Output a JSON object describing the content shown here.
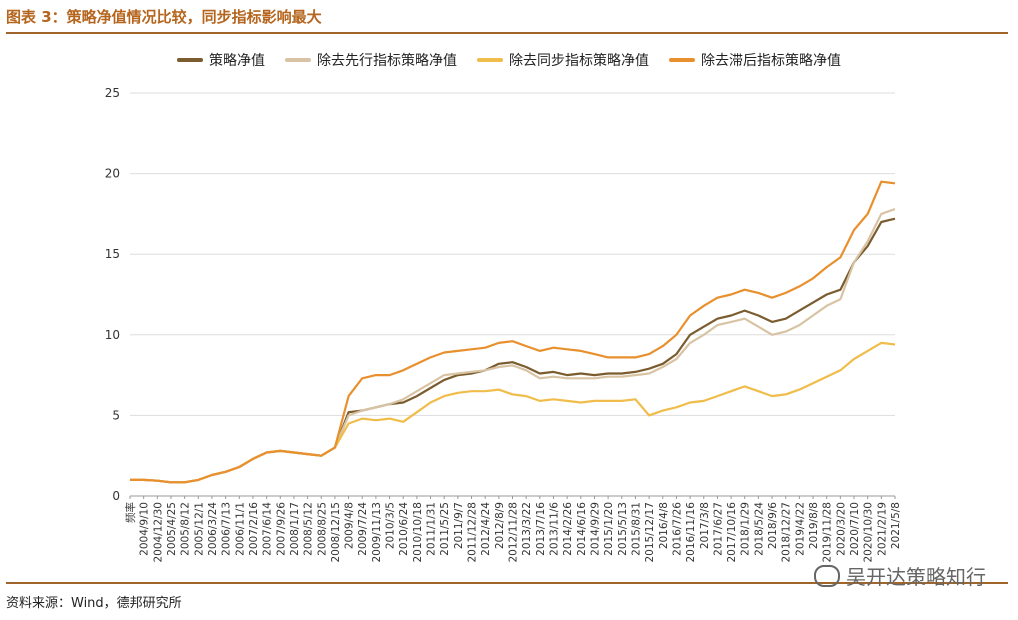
{
  "header": {
    "title": "图表 3：策略净值情况比较，同步指标影响最大"
  },
  "footer": {
    "source": "资料来源：Wind，德邦研究所",
    "watermark": "吴开达策略知行"
  },
  "chart_data": {
    "type": "line",
    "title": "",
    "xlabel": "",
    "ylabel": "",
    "ylim": [
      0,
      25
    ],
    "yticks": [
      0,
      5,
      10,
      15,
      20,
      25
    ],
    "grid": true,
    "legend_position": "top",
    "x_tick_labels": [
      "频率",
      "2004/9/10",
      "2004/12/30",
      "2005/4/25",
      "2005/8/12",
      "2005/12/1",
      "2006/3/24",
      "2006/7/13",
      "2006/11/1",
      "2007/2/16",
      "2007/6/14",
      "2007/9/26",
      "2008/1/17",
      "2008/5/12",
      "2008/8/25",
      "2008/12/15",
      "2009/4/8",
      "2009/7/24",
      "2009/11/13",
      "2010/3/5",
      "2010/6/24",
      "2010/10/18",
      "2011/1/31",
      "2011/5/25",
      "2011/9/7",
      "2011/12/28",
      "2012/4/24",
      "2012/8/9",
      "2012/11/28",
      "2013/3/22",
      "2013/7/16",
      "2013/11/6",
      "2014/2/26",
      "2014/6/16",
      "2014/9/29",
      "2015/1/20",
      "2015/5/13",
      "2015/8/31",
      "2015/12/17",
      "2016/4/8",
      "2016/7/26",
      "2016/11/16",
      "2017/3/8",
      "2017/6/27",
      "2017/10/16",
      "2018/1/29",
      "2018/5/24",
      "2018/9/6",
      "2018/12/27",
      "2019/4/22",
      "2019/8/8",
      "2019/11/28",
      "2020/3/20",
      "2020/7/10",
      "2020/10/30",
      "2021/2/19",
      "2021/5/8"
    ],
    "series": [
      {
        "name": "策略净值",
        "color": "#7a5c2e",
        "values": [
          1.0,
          1.0,
          0.95,
          0.85,
          0.85,
          1.0,
          1.3,
          1.5,
          1.8,
          2.3,
          2.7,
          2.8,
          2.7,
          2.6,
          2.5,
          3.0,
          5.2,
          5.3,
          5.5,
          5.7,
          5.8,
          6.2,
          6.7,
          7.2,
          7.5,
          7.6,
          7.8,
          8.2,
          8.3,
          8.0,
          7.6,
          7.7,
          7.5,
          7.6,
          7.5,
          7.6,
          7.6,
          7.7,
          7.9,
          8.2,
          8.8,
          10.0,
          10.5,
          11.0,
          11.2,
          11.5,
          11.2,
          10.8,
          11.0,
          11.5,
          12.0,
          12.5,
          12.8,
          14.5,
          15.5,
          17.0,
          17.2
        ]
      },
      {
        "name": "除去先行指标策略净值",
        "color": "#d8c4a4",
        "values": [
          1.0,
          1.0,
          0.95,
          0.85,
          0.85,
          1.0,
          1.3,
          1.5,
          1.8,
          2.3,
          2.7,
          2.8,
          2.7,
          2.6,
          2.5,
          3.0,
          5.0,
          5.3,
          5.5,
          5.7,
          6.0,
          6.5,
          7.0,
          7.5,
          7.6,
          7.7,
          7.8,
          8.0,
          8.1,
          7.8,
          7.3,
          7.4,
          7.3,
          7.3,
          7.3,
          7.4,
          7.4,
          7.5,
          7.6,
          8.0,
          8.5,
          9.5,
          10.0,
          10.6,
          10.8,
          11.0,
          10.5,
          10.0,
          10.2,
          10.6,
          11.2,
          11.8,
          12.2,
          14.5,
          15.8,
          17.5,
          17.8
        ]
      },
      {
        "name": "除去同步指标策略净值",
        "color": "#f0bc4a",
        "values": [
          1.0,
          1.0,
          0.95,
          0.85,
          0.85,
          1.0,
          1.3,
          1.5,
          1.8,
          2.3,
          2.7,
          2.8,
          2.7,
          2.6,
          2.5,
          3.0,
          4.5,
          4.8,
          4.7,
          4.8,
          4.6,
          5.2,
          5.8,
          6.2,
          6.4,
          6.5,
          6.5,
          6.6,
          6.3,
          6.2,
          5.9,
          6.0,
          5.9,
          5.8,
          5.9,
          5.9,
          5.9,
          6.0,
          5.0,
          5.3,
          5.5,
          5.8,
          5.9,
          6.2,
          6.5,
          6.8,
          6.5,
          6.2,
          6.3,
          6.6,
          7.0,
          7.4,
          7.8,
          8.5,
          9.0,
          9.5,
          9.4
        ]
      },
      {
        "name": "除去滞后指标策略净值",
        "color": "#e8902e",
        "values": [
          1.0,
          1.0,
          0.95,
          0.85,
          0.85,
          1.0,
          1.3,
          1.5,
          1.8,
          2.3,
          2.7,
          2.8,
          2.7,
          2.6,
          2.5,
          3.0,
          6.2,
          7.3,
          7.5,
          7.5,
          7.8,
          8.2,
          8.6,
          8.9,
          9.0,
          9.1,
          9.2,
          9.5,
          9.6,
          9.3,
          9.0,
          9.2,
          9.1,
          9.0,
          8.8,
          8.6,
          8.6,
          8.6,
          8.8,
          9.3,
          10.0,
          11.2,
          11.8,
          12.3,
          12.5,
          12.8,
          12.6,
          12.3,
          12.6,
          13.0,
          13.5,
          14.2,
          14.8,
          16.5,
          17.5,
          19.5,
          19.4
        ]
      }
    ]
  }
}
